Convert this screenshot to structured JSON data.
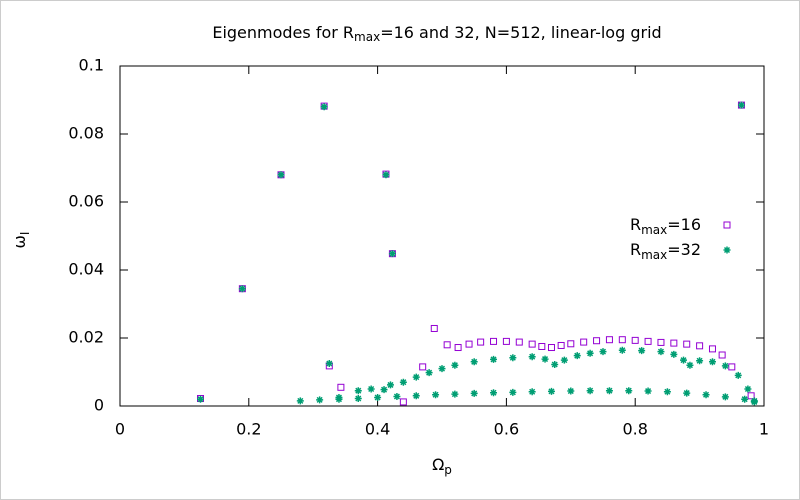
{
  "chart_data": {
    "type": "scatter",
    "title": [
      "Eigenmodes for R",
      "max",
      "=16 and 32, N=512, linear-log grid"
    ],
    "x_label": [
      "Ω",
      "p"
    ],
    "y_label": [
      "ω",
      "I"
    ],
    "xlim": [
      0,
      1
    ],
    "xticks": [
      0,
      0.2,
      0.4,
      0.6,
      0.8,
      1
    ],
    "ylim": [
      0,
      0.1
    ],
    "yticks": [
      0,
      0.02,
      0.04,
      0.06,
      0.08,
      0.1
    ],
    "grid": false,
    "legend": "right",
    "series": [
      {
        "name": [
          "R",
          "max",
          "=16"
        ],
        "color": "#9400d3",
        "marker": "square",
        "x": [
          0.125,
          0.19,
          0.25,
          0.317,
          0.413,
          0.423,
          0.325,
          0.343,
          0.44,
          0.47,
          0.488,
          0.508,
          0.525,
          0.542,
          0.56,
          0.58,
          0.6,
          0.62,
          0.64,
          0.655,
          0.67,
          0.685,
          0.7,
          0.72,
          0.74,
          0.76,
          0.78,
          0.8,
          0.82,
          0.84,
          0.86,
          0.88,
          0.9,
          0.92,
          0.935,
          0.95,
          0.965,
          0.98
        ],
        "values": [
          0.0022,
          0.0345,
          0.068,
          0.0882,
          0.0682,
          0.0448,
          0.0118,
          0.0055,
          0.0012,
          0.0115,
          0.0228,
          0.018,
          0.0172,
          0.0182,
          0.0188,
          0.019,
          0.019,
          0.0188,
          0.0182,
          0.0175,
          0.0172,
          0.0178,
          0.0183,
          0.0188,
          0.0192,
          0.0195,
          0.0195,
          0.0193,
          0.019,
          0.0187,
          0.0185,
          0.0182,
          0.0177,
          0.0168,
          0.015,
          0.0115,
          0.0885,
          0.003
        ]
      },
      {
        "name": [
          "R",
          "max",
          "=32"
        ],
        "color": "#009e73",
        "marker": "star",
        "x": [
          0.125,
          0.19,
          0.25,
          0.317,
          0.413,
          0.423,
          0.325,
          0.965,
          0.28,
          0.31,
          0.34,
          0.37,
          0.4,
          0.43,
          0.46,
          0.49,
          0.52,
          0.55,
          0.58,
          0.61,
          0.64,
          0.67,
          0.7,
          0.73,
          0.76,
          0.79,
          0.82,
          0.85,
          0.88,
          0.91,
          0.94,
          0.97,
          0.985,
          0.34,
          0.37,
          0.39,
          0.41,
          0.42,
          0.44,
          0.46,
          0.48,
          0.5,
          0.52,
          0.55,
          0.58,
          0.61,
          0.64,
          0.66,
          0.675,
          0.69,
          0.71,
          0.73,
          0.75,
          0.78,
          0.81,
          0.84,
          0.86,
          0.875,
          0.885,
          0.9,
          0.92,
          0.94,
          0.96,
          0.975,
          0.985
        ],
        "values": [
          0.002,
          0.0345,
          0.068,
          0.088,
          0.068,
          0.0448,
          0.0125,
          0.0885,
          0.0015,
          0.0018,
          0.002,
          0.0022,
          0.0025,
          0.0028,
          0.003,
          0.0033,
          0.0035,
          0.0037,
          0.0039,
          0.004,
          0.0042,
          0.0043,
          0.0044,
          0.0045,
          0.0045,
          0.0045,
          0.0044,
          0.0042,
          0.0038,
          0.0033,
          0.0027,
          0.002,
          0.0012,
          0.0025,
          0.0045,
          0.005,
          0.0048,
          0.0062,
          0.007,
          0.0085,
          0.0098,
          0.011,
          0.012,
          0.013,
          0.0137,
          0.0142,
          0.0145,
          0.0138,
          0.0122,
          0.0135,
          0.0148,
          0.0155,
          0.016,
          0.0164,
          0.0163,
          0.016,
          0.0152,
          0.0135,
          0.012,
          0.0133,
          0.013,
          0.0118,
          0.009,
          0.005,
          0.0015
        ]
      }
    ]
  }
}
